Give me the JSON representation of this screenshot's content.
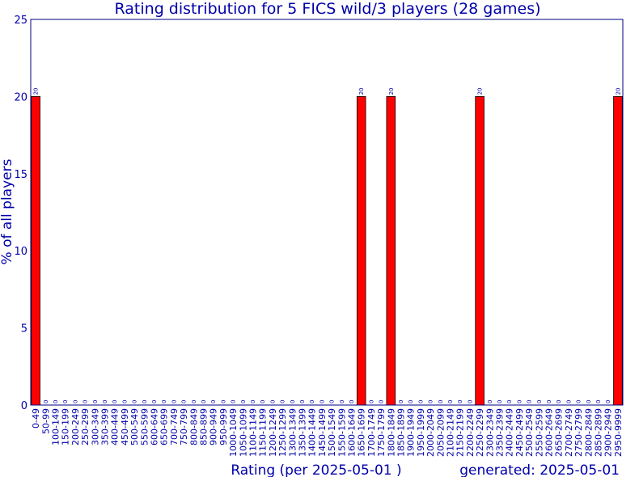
{
  "chart_data": {
    "type": "bar",
    "title": "Rating distribution for 5 FICS wild/3 players (28 games)",
    "xlabel": "Rating (per 2025-05-01 )",
    "ylabel": "% of all players",
    "footer": "generated: 2025-05-01",
    "ylim": [
      0,
      25
    ],
    "yticks": [
      0,
      5,
      10,
      15,
      20,
      25
    ],
    "grid": false,
    "categories": [
      "0-49",
      "50-99",
      "100-149",
      "150-199",
      "200-249",
      "250-299",
      "300-349",
      "350-399",
      "400-449",
      "450-499",
      "500-549",
      "550-599",
      "600-649",
      "650-699",
      "700-749",
      "750-799",
      "800-849",
      "850-899",
      "900-949",
      "950-999",
      "1000-1049",
      "1050-1099",
      "1100-1149",
      "1150-1199",
      "1200-1249",
      "1250-1299",
      "1300-1349",
      "1350-1399",
      "1400-1449",
      "1450-1499",
      "1500-1549",
      "1550-1599",
      "1600-1649",
      "1650-1699",
      "1700-1749",
      "1750-1799",
      "1800-1849",
      "1850-1899",
      "1900-1949",
      "1950-1999",
      "2000-2049",
      "2050-2099",
      "2100-2149",
      "2150-2199",
      "2200-2249",
      "2250-2299",
      "2300-2349",
      "2350-2399",
      "2400-2449",
      "2450-2499",
      "2500-2549",
      "2550-2599",
      "2600-2649",
      "2650-2699",
      "2700-2749",
      "2750-2799",
      "2800-2849",
      "2850-2899",
      "2900-2949",
      "2950-9999"
    ],
    "values": [
      20,
      0,
      0,
      0,
      0,
      0,
      0,
      0,
      0,
      0,
      0,
      0,
      0,
      0,
      0,
      0,
      0,
      0,
      0,
      0,
      0,
      0,
      0,
      0,
      0,
      0,
      0,
      0,
      0,
      0,
      0,
      0,
      0,
      20,
      0,
      0,
      20,
      0,
      0,
      0,
      0,
      0,
      0,
      0,
      0,
      20,
      0,
      0,
      0,
      0,
      0,
      0,
      0,
      0,
      0,
      0,
      0,
      0,
      0,
      20
    ],
    "colors": {
      "bar": "#ff0000",
      "text": "#0000aa",
      "axis": "#000080"
    }
  }
}
